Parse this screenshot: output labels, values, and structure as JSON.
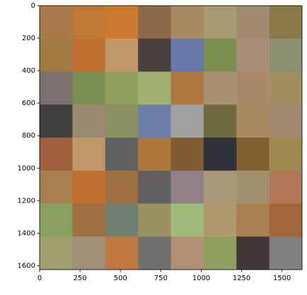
{
  "chart_data": {
    "type": "image",
    "xlim": [
      0,
      1624
    ],
    "ylim": [
      1624,
      0
    ],
    "xticks": [
      0,
      250,
      500,
      750,
      1000,
      1250,
      1500
    ],
    "yticks": [
      0,
      200,
      400,
      600,
      800,
      1000,
      1200,
      1400,
      1600
    ],
    "tile_colors": [
      [
        "#a87a4a",
        "#c07838",
        "#cc7a30",
        "#8a6a48",
        "#a88a60",
        "#a89a70",
        "#a08a70",
        "#8a7a48"
      ],
      [
        "#a07a40",
        "#c07030",
        "#c09868",
        "#4a4040",
        "#6878a8",
        "#7a9050",
        "#a89078",
        "#8a9070"
      ],
      [
        "#7a7070",
        "#7a9050",
        "#90a060",
        "#a0b070",
        "#b07840",
        "#a89070",
        "#a88a6a",
        "#a09060"
      ],
      [
        "#404040",
        "#9a8a70",
        "#8a9060",
        "#6a80a8",
        "#a0a0a0",
        "#706a40",
        "#a88a60",
        "#a08a70"
      ],
      [
        "#a06040",
        "#c09868",
        "#606060",
        "#b07838",
        "#805a30",
        "#303038",
        "#806030",
        "#a08a50"
      ],
      [
        "#a88050",
        "#c07030",
        "#a07040",
        "#606060",
        "#908088",
        "#a89878",
        "#a09070",
        "#b07858"
      ],
      [
        "#8aa060",
        "#a07040",
        "#708070",
        "#9a9060",
        "#a0b878",
        "#b09870",
        "#a88050",
        "#a06838"
      ],
      [
        "#a0a070",
        "#a09078",
        "#c07840",
        "#707070",
        "#b09070",
        "#90a060",
        "#403838",
        "#808080"
      ]
    ]
  }
}
